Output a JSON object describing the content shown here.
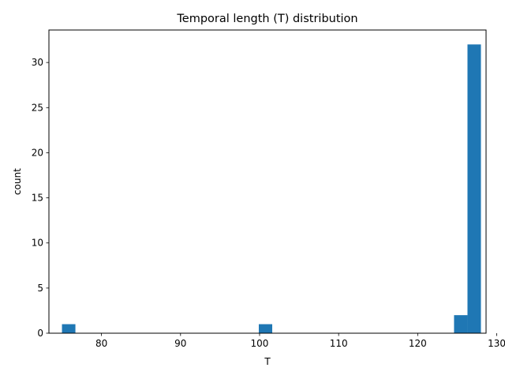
{
  "chart_data": {
    "type": "bar",
    "title": "Temporal length (T) distribution",
    "xlabel": "T",
    "ylabel": "count",
    "xlim": [
      73.35,
      128.65
    ],
    "ylim": [
      0,
      33.6
    ],
    "xticks": [
      80,
      90,
      100,
      110,
      120,
      130
    ],
    "yticks": [
      0,
      5,
      10,
      15,
      20,
      25,
      30
    ],
    "grid": false,
    "color": "#1f77b4",
    "bins": [
      {
        "x0": 75.0,
        "x1": 76.7,
        "count": 1
      },
      {
        "x0": 99.9,
        "x1": 101.6,
        "count": 1
      },
      {
        "x0": 124.6,
        "x1": 126.3,
        "count": 2
      },
      {
        "x0": 126.3,
        "x1": 128.0,
        "count": 32
      }
    ]
  }
}
